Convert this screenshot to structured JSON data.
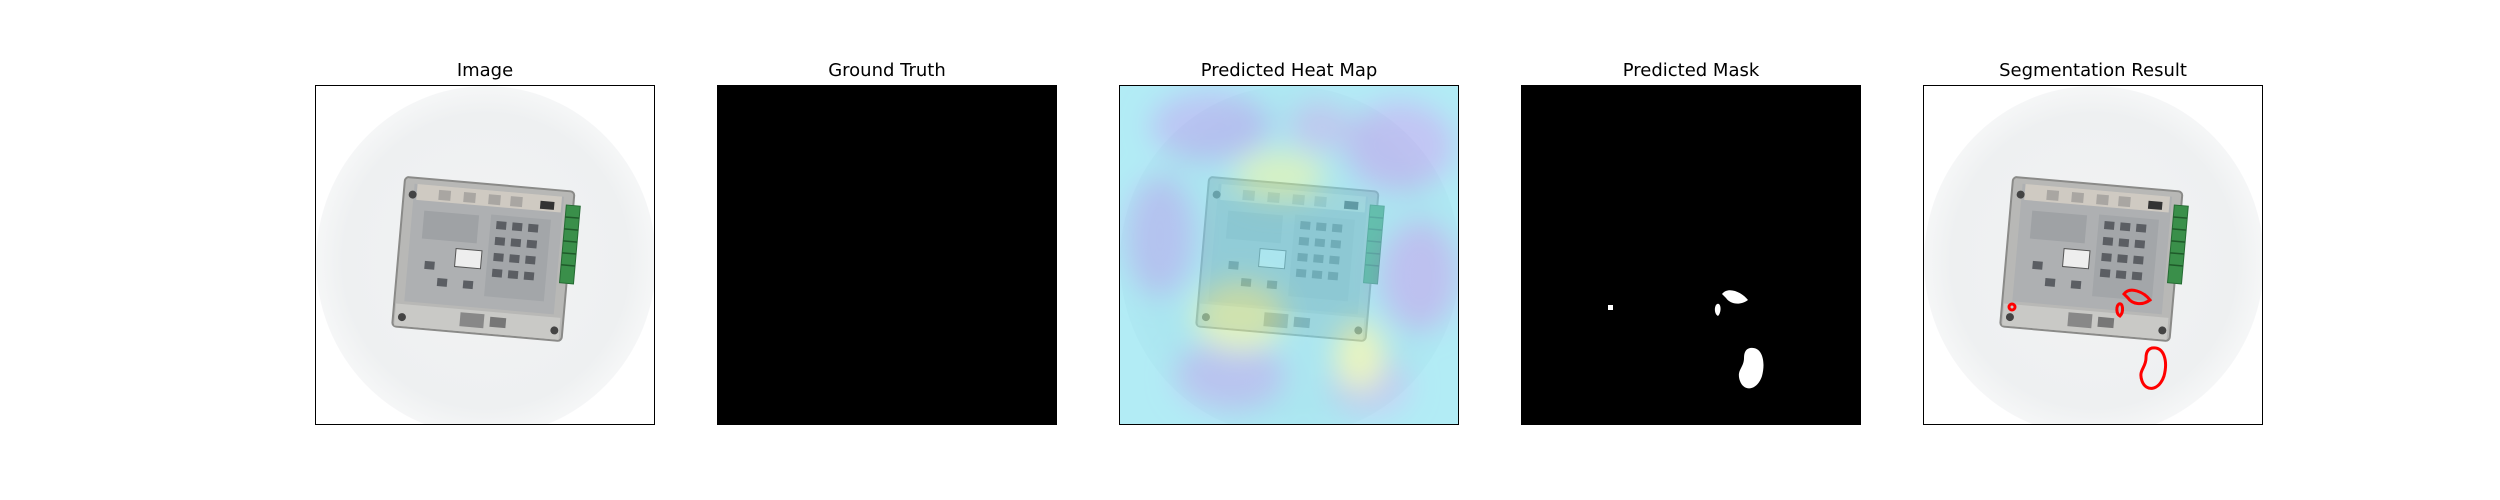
{
  "panels": [
    {
      "title": "Image"
    },
    {
      "title": "Ground Truth"
    },
    {
      "title": "Predicted Heat Map"
    },
    {
      "title": "Predicted Mask"
    },
    {
      "title": "Segmentation Result"
    }
  ],
  "colors": {
    "mask_background": "#000000",
    "mask_foreground": "#ffffff",
    "contour": "#ff0000"
  }
}
